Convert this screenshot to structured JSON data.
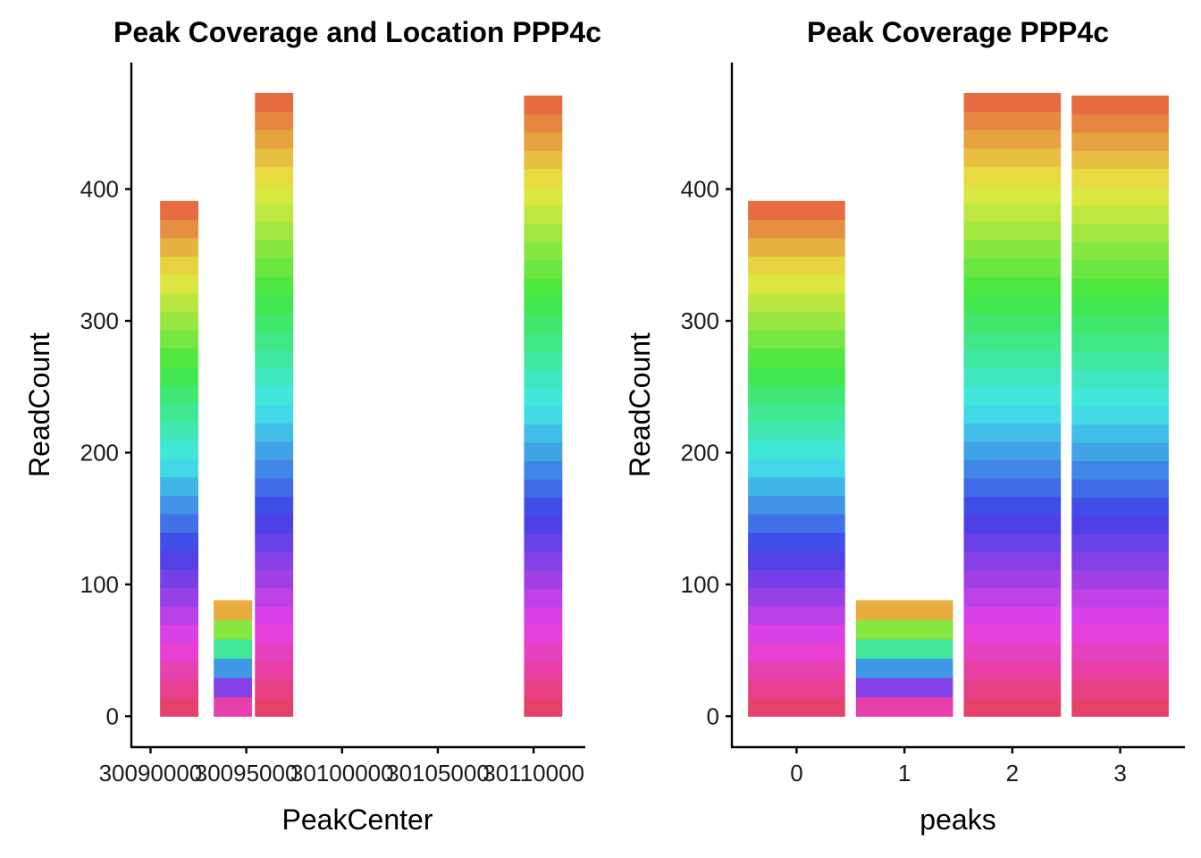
{
  "chart_data": [
    {
      "type": "bar",
      "title": "Peak Coverage and Location PPP4c",
      "xlabel": "PeakCenter",
      "ylabel": "ReadCount",
      "xlim": [
        30089000,
        30112700
      ],
      "ylim": [
        -23.5,
        496
      ],
      "x_ticks": [
        30090000,
        30095000,
        30100000,
        30105000,
        30110000
      ],
      "x_tick_labels": [
        "30090000",
        "30095000",
        "30100000",
        "30105000",
        "30110000"
      ],
      "y_ticks": [
        0,
        100,
        200,
        300,
        400
      ],
      "y_tick_labels": [
        "0",
        "100",
        "200",
        "300",
        "400"
      ],
      "bar_width": 2000,
      "bars": [
        {
          "x": 30091500,
          "value": 391
        },
        {
          "x": 30094300,
          "value": 88
        },
        {
          "x": 30096450,
          "value": 473
        },
        {
          "x": 30110500,
          "value": 471
        }
      ],
      "fill": "stacked segments in a rainbow hue gradient",
      "grid": false,
      "legend": "none"
    },
    {
      "type": "bar",
      "title": "Peak Coverage PPP4c",
      "xlabel": "peaks",
      "ylabel": "ReadCount",
      "categories": [
        "0",
        "1",
        "2",
        "3"
      ],
      "values": [
        391,
        88,
        473,
        471
      ],
      "ylim": [
        -23.5,
        496
      ],
      "y_ticks": [
        0,
        100,
        200,
        300,
        400
      ],
      "y_tick_labels": [
        "0",
        "100",
        "200",
        "300",
        "400"
      ],
      "fill": "stacked segments in a rainbow hue gradient",
      "grid": false,
      "legend": "none"
    }
  ]
}
